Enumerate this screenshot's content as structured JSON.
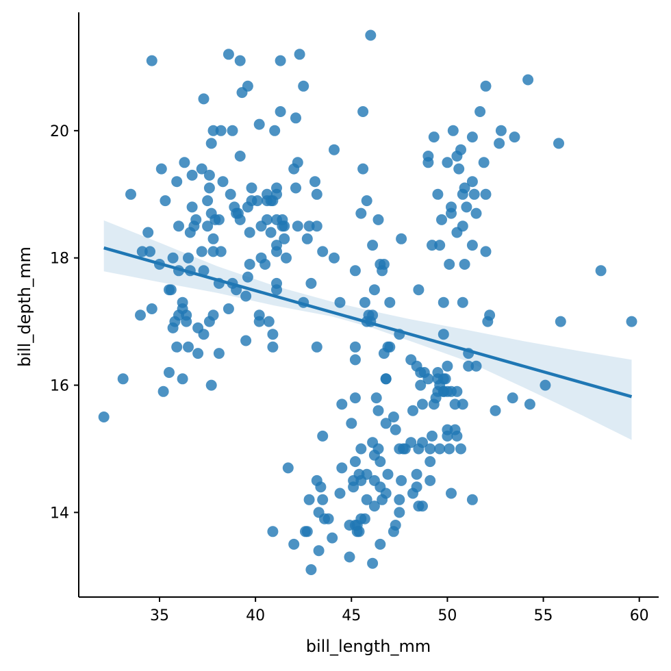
{
  "chart_data": {
    "type": "scatter",
    "title": "",
    "xlabel": "bill_length_mm",
    "ylabel": "bill_depth_mm",
    "xlim": [
      30.79,
      61.01
    ],
    "ylim": [
      12.67,
      21.86
    ],
    "xticks": [
      35,
      40,
      45,
      50,
      55,
      60
    ],
    "yticks": [
      14,
      16,
      18,
      20
    ],
    "grid": false,
    "legend": "none",
    "point_color": "#1f77b4",
    "regression": {
      "x_range": [
        32.1,
        59.6
      ],
      "intercept": 20.886,
      "slope": -0.085,
      "ci_color": "#1f77b4",
      "ci": [
        {
          "x": 32.1,
          "lo": 17.79,
          "hi": 18.59
        },
        {
          "x": 35.0,
          "lo": 17.62,
          "hi": 18.24
        },
        {
          "x": 38.0,
          "lo": 17.45,
          "hi": 17.87
        },
        {
          "x": 41.0,
          "lo": 17.25,
          "hi": 17.56
        },
        {
          "x": 44.0,
          "lo": 17.08,
          "hi": 17.31
        },
        {
          "x": 46.0,
          "lo": 16.91,
          "hi": 17.17
        },
        {
          "x": 48.0,
          "lo": 16.7,
          "hi": 17.04
        },
        {
          "x": 51.0,
          "lo": 16.38,
          "hi": 16.87
        },
        {
          "x": 54.0,
          "lo": 15.96,
          "hi": 16.69
        },
        {
          "x": 57.0,
          "lo": 15.53,
          "hi": 16.53
        },
        {
          "x": 59.6,
          "lo": 15.14,
          "hi": 16.4
        }
      ]
    },
    "points": [
      [
        32.1,
        15.5
      ],
      [
        33.1,
        16.1
      ],
      [
        33.5,
        19.0
      ],
      [
        34.0,
        17.1
      ],
      [
        34.1,
        18.1
      ],
      [
        34.4,
        18.4
      ],
      [
        34.5,
        18.1
      ],
      [
        34.6,
        17.2
      ],
      [
        34.6,
        21.1
      ],
      [
        35.0,
        17.9
      ],
      [
        35.1,
        19.4
      ],
      [
        35.2,
        15.9
      ],
      [
        35.3,
        18.9
      ],
      [
        35.5,
        16.2
      ],
      [
        35.5,
        17.5
      ],
      [
        35.6,
        17.5
      ],
      [
        35.7,
        18.0
      ],
      [
        35.7,
        16.9
      ],
      [
        35.8,
        17.0
      ],
      [
        35.9,
        19.2
      ],
      [
        35.9,
        16.6
      ],
      [
        36.0,
        17.1
      ],
      [
        36.0,
        18.5
      ],
      [
        36.0,
        17.8
      ],
      [
        36.2,
        17.3
      ],
      [
        36.2,
        16.1
      ],
      [
        36.2,
        17.2
      ],
      [
        36.3,
        19.5
      ],
      [
        36.4,
        17.1
      ],
      [
        36.4,
        17.0
      ],
      [
        36.5,
        18.0
      ],
      [
        36.5,
        16.6
      ],
      [
        36.6,
        18.4
      ],
      [
        36.6,
        17.8
      ],
      [
        36.7,
        19.3
      ],
      [
        36.7,
        18.8
      ],
      [
        36.8,
        18.5
      ],
      [
        36.9,
        18.6
      ],
      [
        37.0,
        16.9
      ],
      [
        37.0,
        16.5
      ],
      [
        37.2,
        19.4
      ],
      [
        37.2,
        18.1
      ],
      [
        37.3,
        20.5
      ],
      [
        37.3,
        16.8
      ],
      [
        37.3,
        17.8
      ],
      [
        37.5,
        18.9
      ],
      [
        37.5,
        18.5
      ],
      [
        37.6,
        19.1
      ],
      [
        37.6,
        17.0
      ],
      [
        37.6,
        19.3
      ],
      [
        37.7,
        18.7
      ],
      [
        37.7,
        16.0
      ],
      [
        37.7,
        19.8
      ],
      [
        37.8,
        18.3
      ],
      [
        37.8,
        20.0
      ],
      [
        37.8,
        18.1
      ],
      [
        37.8,
        17.1
      ],
      [
        37.9,
        18.6
      ],
      [
        38.1,
        18.6
      ],
      [
        38.1,
        17.6
      ],
      [
        38.1,
        16.5
      ],
      [
        38.2,
        20.0
      ],
      [
        38.2,
        18.1
      ],
      [
        38.3,
        19.2
      ],
      [
        38.6,
        21.2
      ],
      [
        38.6,
        17.2
      ],
      [
        38.7,
        19.0
      ],
      [
        38.8,
        17.6
      ],
      [
        38.8,
        20.0
      ],
      [
        38.9,
        18.8
      ],
      [
        39.0,
        17.5
      ],
      [
        39.0,
        18.7
      ],
      [
        39.1,
        18.7
      ],
      [
        39.2,
        19.6
      ],
      [
        39.2,
        21.1
      ],
      [
        39.2,
        18.6
      ],
      [
        39.3,
        20.6
      ],
      [
        39.5,
        17.4
      ],
      [
        39.5,
        16.7
      ],
      [
        39.6,
        17.7
      ],
      [
        39.6,
        18.8
      ],
      [
        39.6,
        20.7
      ],
      [
        39.7,
        18.4
      ],
      [
        39.7,
        17.9
      ],
      [
        39.8,
        19.1
      ],
      [
        39.8,
        18.9
      ],
      [
        40.1,
        18.9
      ],
      [
        40.2,
        20.1
      ],
      [
        40.2,
        17.1
      ],
      [
        40.2,
        17.0
      ],
      [
        40.3,
        18.5
      ],
      [
        40.3,
        18.0
      ],
      [
        40.5,
        17.9
      ],
      [
        40.6,
        18.6
      ],
      [
        40.6,
        18.9
      ],
      [
        40.6,
        19.0
      ],
      [
        40.7,
        17.0
      ],
      [
        40.8,
        18.4
      ],
      [
        40.8,
        18.9
      ],
      [
        40.9,
        16.6
      ],
      [
        40.9,
        18.9
      ],
      [
        40.9,
        16.8
      ],
      [
        41.0,
        20.0
      ],
      [
        41.1,
        18.2
      ],
      [
        41.1,
        17.5
      ],
      [
        41.1,
        18.1
      ],
      [
        41.1,
        18.6
      ],
      [
        41.1,
        17.6
      ],
      [
        41.1,
        19.0
      ],
      [
        41.1,
        19.1
      ],
      [
        41.3,
        21.1
      ],
      [
        41.3,
        20.3
      ],
      [
        41.4,
        18.6
      ],
      [
        41.4,
        18.5
      ],
      [
        41.5,
        18.5
      ],
      [
        41.5,
        18.3
      ],
      [
        41.6,
        18.0
      ],
      [
        42.0,
        19.4
      ],
      [
        42.1,
        19.1
      ],
      [
        42.1,
        20.2
      ],
      [
        42.2,
        19.5
      ],
      [
        42.2,
        18.5
      ],
      [
        42.3,
        21.2
      ],
      [
        42.5,
        20.7
      ],
      [
        42.5,
        17.3
      ],
      [
        42.7,
        18.3
      ],
      [
        42.8,
        18.5
      ],
      [
        42.9,
        17.6
      ],
      [
        43.1,
        19.2
      ],
      [
        43.2,
        19.0
      ],
      [
        43.2,
        18.5
      ],
      [
        43.2,
        16.6
      ],
      [
        43.5,
        18.1
      ],
      [
        44.1,
        19.7
      ],
      [
        44.1,
        18.0
      ],
      [
        44.4,
        17.3
      ],
      [
        45.2,
        17.8
      ],
      [
        45.2,
        16.6
      ],
      [
        45.2,
        16.4
      ],
      [
        45.5,
        18.7
      ],
      [
        45.6,
        20.3
      ],
      [
        45.6,
        19.4
      ],
      [
        45.8,
        18.9
      ],
      [
        46.0,
        21.5
      ],
      [
        46.1,
        18.2
      ],
      [
        46.2,
        17.5
      ],
      [
        46.4,
        18.6
      ],
      [
        46.5,
        17.9
      ],
      [
        46.6,
        17.8
      ],
      [
        46.7,
        17.9
      ],
      [
        46.8,
        16.1
      ],
      [
        46.9,
        16.6
      ],
      [
        47.0,
        17.3
      ],
      [
        47.5,
        16.8
      ],
      [
        47.6,
        18.3
      ],
      [
        48.1,
        16.4
      ],
      [
        48.5,
        17.5
      ],
      [
        49.0,
        19.5
      ],
      [
        49.0,
        19.6
      ],
      [
        49.2,
        18.2
      ],
      [
        49.3,
        19.9
      ],
      [
        49.5,
        19.0
      ],
      [
        49.6,
        18.2
      ],
      [
        49.7,
        18.6
      ],
      [
        49.8,
        17.3
      ],
      [
        49.8,
        16.8
      ],
      [
        50.0,
        19.5
      ],
      [
        50.1,
        17.9
      ],
      [
        50.2,
        18.8
      ],
      [
        50.2,
        18.7
      ],
      [
        50.3,
        20.0
      ],
      [
        50.5,
        18.4
      ],
      [
        50.5,
        19.6
      ],
      [
        50.6,
        19.4
      ],
      [
        50.7,
        19.7
      ],
      [
        50.8,
        19.0
      ],
      [
        50.8,
        18.5
      ],
      [
        50.9,
        17.9
      ],
      [
        50.9,
        19.1
      ],
      [
        51.0,
        18.8
      ],
      [
        51.3,
        19.9
      ],
      [
        51.3,
        18.2
      ],
      [
        51.3,
        19.2
      ],
      [
        51.4,
        19.0
      ],
      [
        51.5,
        18.7
      ],
      [
        51.7,
        20.3
      ],
      [
        51.9,
        19.5
      ],
      [
        52.0,
        18.1
      ],
      [
        52.0,
        19.0
      ],
      [
        52.0,
        20.7
      ],
      [
        52.7,
        19.8
      ],
      [
        52.8,
        20.0
      ],
      [
        53.5,
        19.9
      ],
      [
        54.2,
        20.8
      ],
      [
        55.8,
        19.8
      ],
      [
        58.0,
        17.8
      ],
      [
        40.9,
        13.7
      ],
      [
        41.7,
        14.7
      ],
      [
        42.0,
        13.5
      ],
      [
        42.6,
        13.7
      ],
      [
        42.7,
        13.7
      ],
      [
        42.8,
        14.2
      ],
      [
        42.9,
        13.1
      ],
      [
        43.2,
        14.5
      ],
      [
        43.3,
        14.0
      ],
      [
        43.3,
        13.4
      ],
      [
        43.4,
        14.4
      ],
      [
        43.5,
        14.2
      ],
      [
        43.5,
        15.2
      ],
      [
        43.6,
        13.9
      ],
      [
        43.8,
        13.9
      ],
      [
        44.0,
        13.6
      ],
      [
        44.4,
        14.3
      ],
      [
        44.5,
        14.7
      ],
      [
        44.5,
        15.7
      ],
      [
        44.9,
        13.8
      ],
      [
        44.9,
        13.3
      ],
      [
        45.0,
        15.4
      ],
      [
        45.1,
        14.5
      ],
      [
        45.1,
        14.4
      ],
      [
        45.2,
        15.8
      ],
      [
        45.2,
        14.8
      ],
      [
        45.2,
        13.8
      ],
      [
        45.3,
        13.8
      ],
      [
        45.3,
        13.7
      ],
      [
        45.4,
        14.6
      ],
      [
        45.4,
        13.7
      ],
      [
        45.5,
        14.5
      ],
      [
        45.5,
        13.9
      ],
      [
        45.5,
        15.0
      ],
      [
        45.7,
        13.9
      ],
      [
        45.8,
        14.6
      ],
      [
        45.8,
        14.2
      ],
      [
        46.1,
        13.2
      ],
      [
        46.1,
        15.1
      ],
      [
        46.2,
        14.5
      ],
      [
        46.2,
        14.1
      ],
      [
        46.2,
        14.9
      ],
      [
        46.3,
        15.8
      ],
      [
        46.4,
        15.6
      ],
      [
        46.4,
        15.0
      ],
      [
        46.5,
        14.4
      ],
      [
        46.5,
        14.8
      ],
      [
        46.5,
        13.5
      ],
      [
        46.6,
        14.2
      ],
      [
        46.8,
        14.3
      ],
      [
        46.8,
        15.4
      ],
      [
        46.8,
        16.1
      ],
      [
        46.9,
        14.6
      ],
      [
        47.2,
        13.7
      ],
      [
        47.2,
        15.5
      ],
      [
        47.3,
        13.8
      ],
      [
        47.3,
        15.3
      ],
      [
        47.5,
        14.2
      ],
      [
        47.5,
        14.0
      ],
      [
        47.5,
        15.0
      ],
      [
        47.6,
        14.5
      ],
      [
        47.7,
        15.0
      ],
      [
        47.8,
        15.0
      ],
      [
        48.1,
        15.1
      ],
      [
        48.2,
        14.3
      ],
      [
        48.2,
        15.6
      ],
      [
        48.4,
        14.6
      ],
      [
        48.4,
        14.4
      ],
      [
        48.4,
        16.3
      ],
      [
        48.5,
        15.0
      ],
      [
        48.5,
        14.1
      ],
      [
        48.6,
        16.0
      ],
      [
        48.7,
        14.1
      ],
      [
        48.7,
        15.7
      ],
      [
        48.7,
        15.1
      ],
      [
        48.8,
        16.2
      ],
      [
        49.0,
        16.1
      ],
      [
        49.1,
        14.8
      ],
      [
        49.1,
        15.0
      ],
      [
        49.1,
        14.5
      ],
      [
        49.2,
        15.2
      ],
      [
        49.3,
        15.7
      ],
      [
        49.4,
        15.8
      ],
      [
        49.5,
        16.1
      ],
      [
        49.5,
        16.2
      ],
      [
        49.6,
        16.0
      ],
      [
        49.6,
        15.0
      ],
      [
        49.8,
        15.9
      ],
      [
        49.8,
        16.1
      ],
      [
        49.9,
        16.1
      ],
      [
        50.0,
        15.9
      ],
      [
        50.0,
        15.2
      ],
      [
        50.0,
        15.3
      ],
      [
        50.1,
        15.0
      ],
      [
        50.2,
        14.3
      ],
      [
        50.4,
        15.3
      ],
      [
        50.4,
        15.7
      ],
      [
        50.5,
        15.2
      ],
      [
        50.5,
        15.9
      ],
      [
        50.7,
        15.0
      ],
      [
        50.8,
        15.7
      ],
      [
        50.8,
        17.3
      ],
      [
        51.1,
        16.3
      ],
      [
        51.1,
        16.5
      ],
      [
        51.3,
        14.2
      ],
      [
        51.5,
        16.3
      ],
      [
        52.1,
        17.0
      ],
      [
        52.2,
        17.1
      ],
      [
        52.5,
        15.6
      ],
      [
        53.4,
        15.8
      ],
      [
        54.3,
        15.7
      ],
      [
        55.1,
        16.0
      ],
      [
        55.9,
        17.0
      ],
      [
        59.6,
        17.0
      ],
      [
        45.7,
        17.3
      ],
      [
        45.8,
        17.0
      ],
      [
        46.0,
        17.0
      ],
      [
        46.1,
        17.1
      ],
      [
        45.9,
        17.1
      ],
      [
        46.7,
        16.5
      ],
      [
        47.0,
        16.6
      ],
      [
        48.6,
        16.2
      ],
      [
        49.5,
        15.9
      ],
      [
        49.8,
        15.9
      ],
      [
        50.2,
        15.9
      ],
      [
        50.0,
        16.3
      ]
    ]
  }
}
